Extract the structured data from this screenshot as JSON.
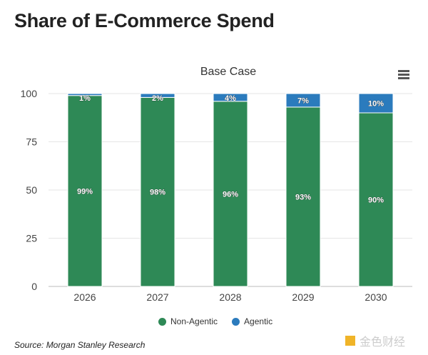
{
  "page_title": "Share of E-Commerce Spend",
  "source": "Source: Morgan Stanley Research",
  "logo_text": "金色财经",
  "menu_icon": "hamburger-menu-icon",
  "colors": {
    "non_agentic": "#2e8956",
    "agentic": "#2b7bbd"
  },
  "chart_data": {
    "type": "bar",
    "stacked": true,
    "title": "Base Case",
    "categories": [
      "2026",
      "2027",
      "2028",
      "2029",
      "2030"
    ],
    "series": [
      {
        "name": "Non-Agentic",
        "values": [
          99,
          98,
          96,
          93,
          90
        ],
        "labels": [
          "99%",
          "98%",
          "96%",
          "93%",
          "90%"
        ]
      },
      {
        "name": "Agentic",
        "values": [
          1,
          2,
          4,
          7,
          10
        ],
        "labels": [
          "1%",
          "2%",
          "4%",
          "7%",
          "10%"
        ]
      }
    ],
    "ylim": [
      0,
      100
    ],
    "yticks": [
      "0",
      "25",
      "50",
      "75",
      "100"
    ],
    "grid": true,
    "legend": "bottom"
  }
}
